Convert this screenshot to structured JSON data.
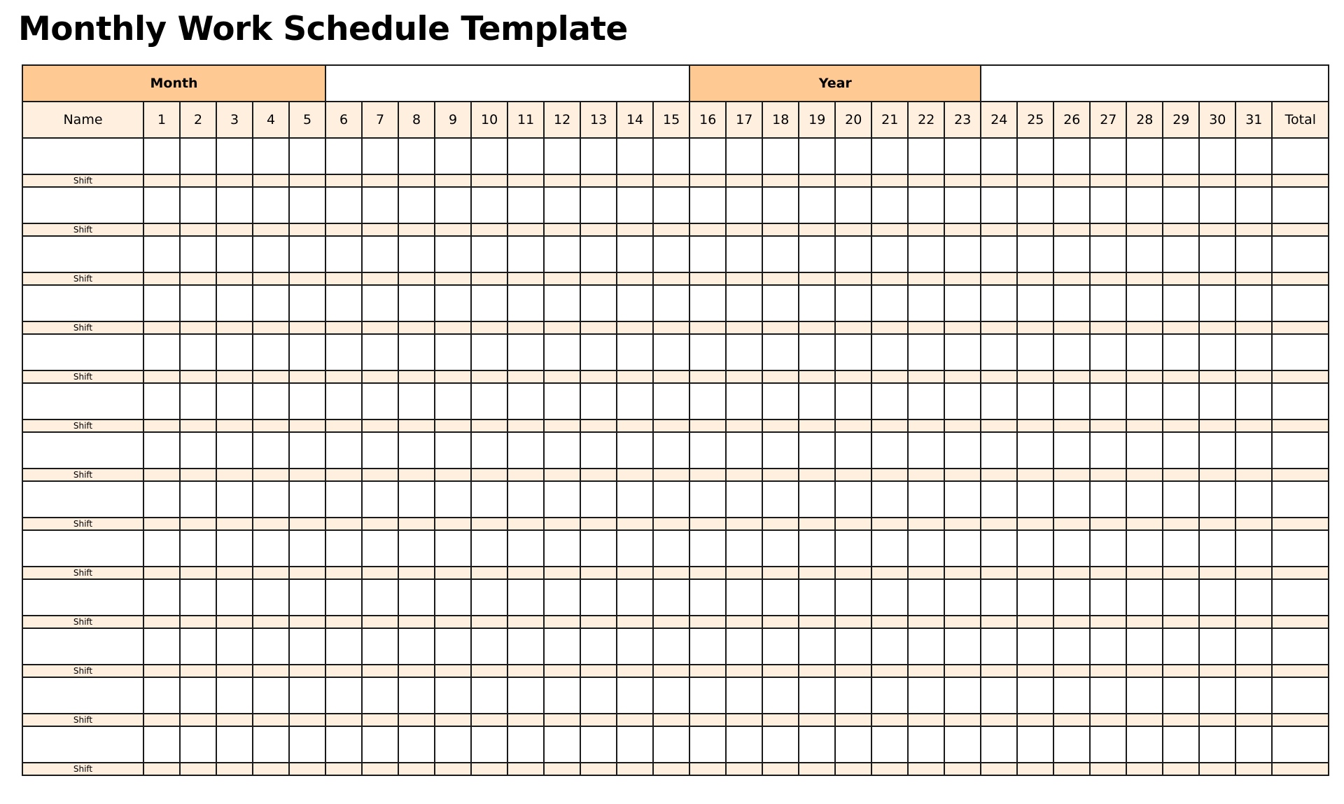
{
  "title": "Monthly Work Schedule Template",
  "colors": {
    "header_accent": "#FFC993",
    "header_light": "#FFEFDF",
    "border": "#1a1a1a"
  },
  "top_row": {
    "month_label": "Month",
    "month_value": "",
    "year_label": "Year",
    "year_value": ""
  },
  "header": {
    "name_label": "Name",
    "days": [
      "1",
      "2",
      "3",
      "4",
      "5",
      "6",
      "7",
      "8",
      "9",
      "10",
      "11",
      "12",
      "13",
      "14",
      "15",
      "16",
      "17",
      "18",
      "19",
      "20",
      "21",
      "22",
      "23",
      "24",
      "25",
      "26",
      "27",
      "28",
      "29",
      "30",
      "31"
    ],
    "total_label": "Total"
  },
  "employees": [
    {
      "name": "",
      "shift_label": "Shift"
    },
    {
      "name": "",
      "shift_label": "Shift"
    },
    {
      "name": "",
      "shift_label": "Shift"
    },
    {
      "name": "",
      "shift_label": "Shift"
    },
    {
      "name": "",
      "shift_label": "Shift"
    },
    {
      "name": "",
      "shift_label": "Shift"
    },
    {
      "name": "",
      "shift_label": "Shift"
    },
    {
      "name": "",
      "shift_label": "Shift"
    },
    {
      "name": "",
      "shift_label": "Shift"
    },
    {
      "name": "",
      "shift_label": "Shift"
    },
    {
      "name": "",
      "shift_label": "Shift"
    },
    {
      "name": "",
      "shift_label": "Shift"
    },
    {
      "name": "",
      "shift_label": "Shift"
    }
  ]
}
